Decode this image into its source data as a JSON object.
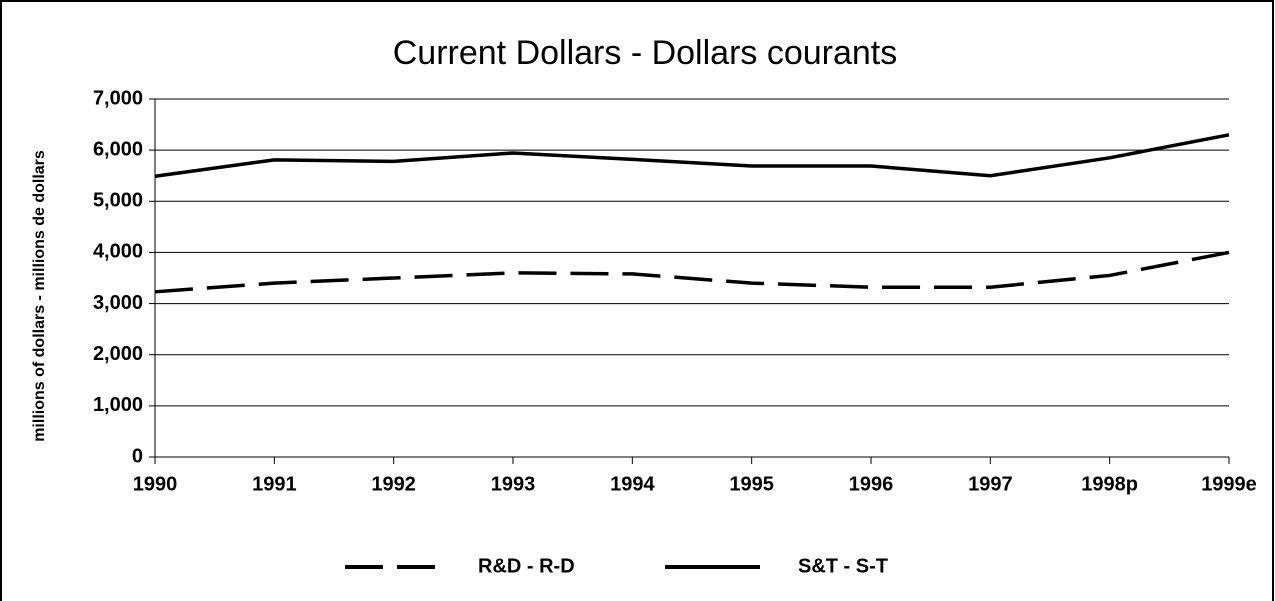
{
  "chart_data": {
    "type": "line",
    "title": "Current Dollars  - Dollars courants",
    "y_label": "millions of dollars - millions de dollars",
    "categories": [
      "1990",
      "1991",
      "1992",
      "1993",
      "1994",
      "1995",
      "1996",
      "1997",
      "1998p",
      "1999e"
    ],
    "series": [
      {
        "name": "R&D - R-D",
        "color": "#000000",
        "dash": true,
        "values": [
          3230,
          3400,
          3500,
          3600,
          3580,
          3400,
          3320,
          3320,
          3550,
          4000
        ]
      },
      {
        "name": "S&T - S-T",
        "color": "#000000",
        "dash": false,
        "values": [
          5490,
          5810,
          5780,
          5945,
          5820,
          5690,
          5690,
          5500,
          5850,
          6300
        ]
      }
    ],
    "ylim": [
      0,
      7000
    ],
    "yticks": [
      0,
      {
        "value": 1000,
        "label": "1,000"
      },
      {
        "value": 2000,
        "label": "2,000"
      },
      {
        "value": 3000,
        "label": "3,000"
      },
      {
        "value": 4000,
        "label": "4,000"
      },
      {
        "value": 5000,
        "label": "5,000"
      },
      {
        "value": 6000,
        "label": "6,000"
      },
      {
        "value": 7000,
        "label": "7,000"
      }
    ],
    "grid": true,
    "legend": "bottom"
  }
}
